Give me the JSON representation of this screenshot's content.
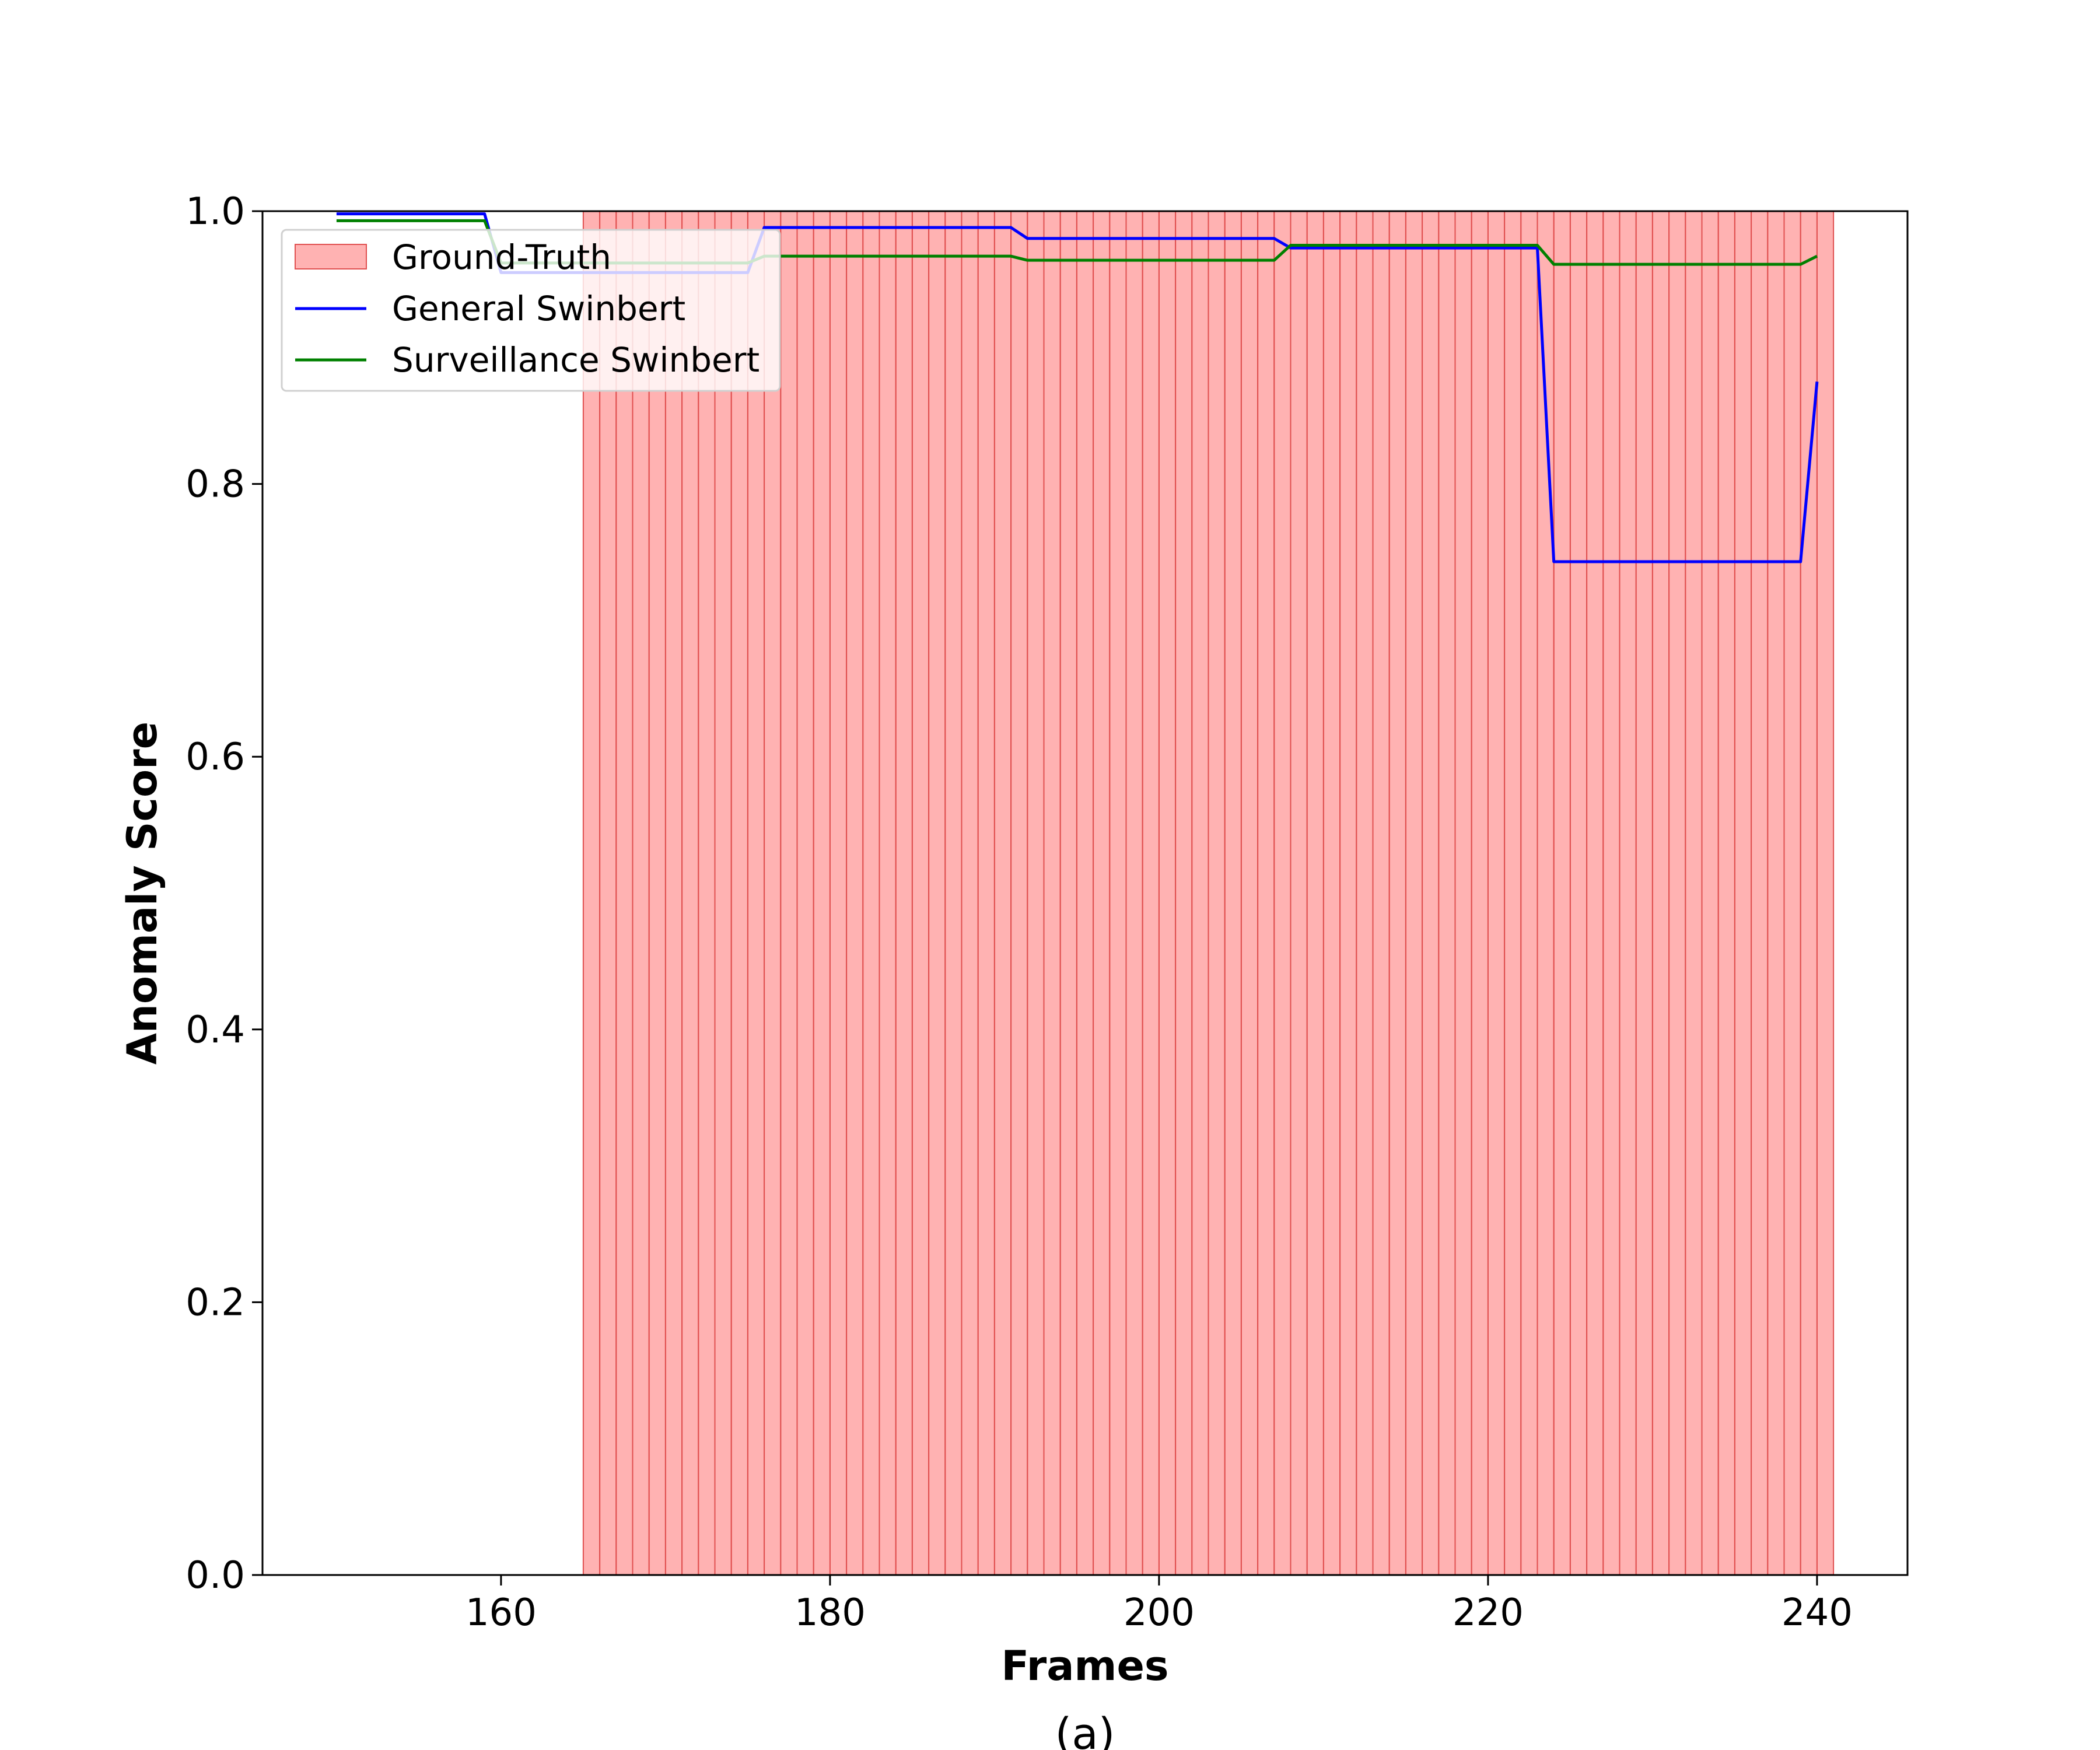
{
  "chart_data": {
    "type": "line",
    "xlabel": "Frames",
    "ylabel": "Anomaly Score",
    "caption": "(a)",
    "xlim": [
      145.5,
      245.5
    ],
    "ylim": [
      0.0,
      1.0
    ],
    "xticks": [
      160,
      180,
      200,
      220,
      240
    ],
    "yticks": [
      0.0,
      0.2,
      0.4,
      0.6,
      0.8,
      1.0
    ],
    "xtick_labels": [
      "160",
      "180",
      "200",
      "220",
      "240"
    ],
    "ytick_labels": [
      "0.0",
      "0.2",
      "0.4",
      "0.6",
      "0.8",
      "1.0"
    ],
    "legend_position": "upper-left",
    "ground_truth": {
      "name": "Ground-Truth",
      "x_start": 165,
      "x_end": 241,
      "y": 1.0,
      "color": "#ff7f7f",
      "edge_color": "#e05050"
    },
    "series": [
      {
        "name": "General Swinbert",
        "color": "#0000ff",
        "points": [
          [
            150,
            0.998
          ],
          [
            159,
            0.998
          ],
          [
            160,
            0.955
          ],
          [
            175,
            0.955
          ],
          [
            176,
            0.988
          ],
          [
            191,
            0.988
          ],
          [
            192,
            0.98
          ],
          [
            207,
            0.98
          ],
          [
            208,
            0.973
          ],
          [
            223,
            0.973
          ],
          [
            224,
            0.743
          ],
          [
            239,
            0.743
          ],
          [
            240,
            0.875
          ]
        ]
      },
      {
        "name": "Surveillance Swinbert",
        "color": "#008000",
        "points": [
          [
            150,
            0.993
          ],
          [
            159,
            0.993
          ],
          [
            160,
            0.962
          ],
          [
            175,
            0.962
          ],
          [
            176,
            0.967
          ],
          [
            191,
            0.967
          ],
          [
            192,
            0.964
          ],
          [
            207,
            0.964
          ],
          [
            208,
            0.975
          ],
          [
            223,
            0.975
          ],
          [
            224,
            0.961
          ],
          [
            239,
            0.961
          ],
          [
            240,
            0.967
          ]
        ]
      }
    ]
  }
}
